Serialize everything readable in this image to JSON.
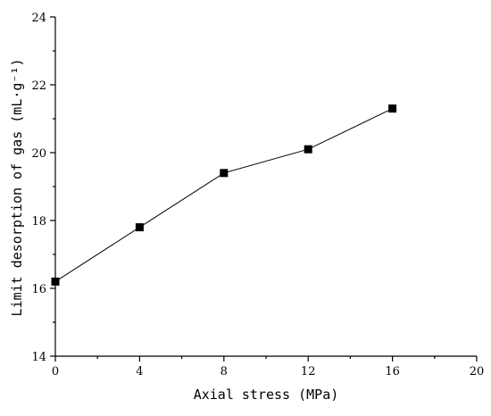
{
  "chart_data": {
    "type": "line",
    "xlabel": "Axial stress (MPa)",
    "ylabel": "Limit desorption of gas (mL·g⁻¹)",
    "xlim": [
      0,
      20
    ],
    "ylim": [
      14,
      24
    ],
    "x_ticks": [
      0,
      4,
      8,
      12,
      16,
      20
    ],
    "y_ticks": [
      14,
      16,
      18,
      20,
      22,
      24
    ],
    "grid": false,
    "legend": "none",
    "marker": "square",
    "series": [
      {
        "x": [
          0,
          4,
          8,
          12,
          16
        ],
        "values": [
          16.2,
          17.8,
          19.4,
          20.1,
          21.3
        ]
      }
    ],
    "colors": {
      "line": "#000000",
      "marker": "#000000",
      "axis": "#000000"
    }
  }
}
